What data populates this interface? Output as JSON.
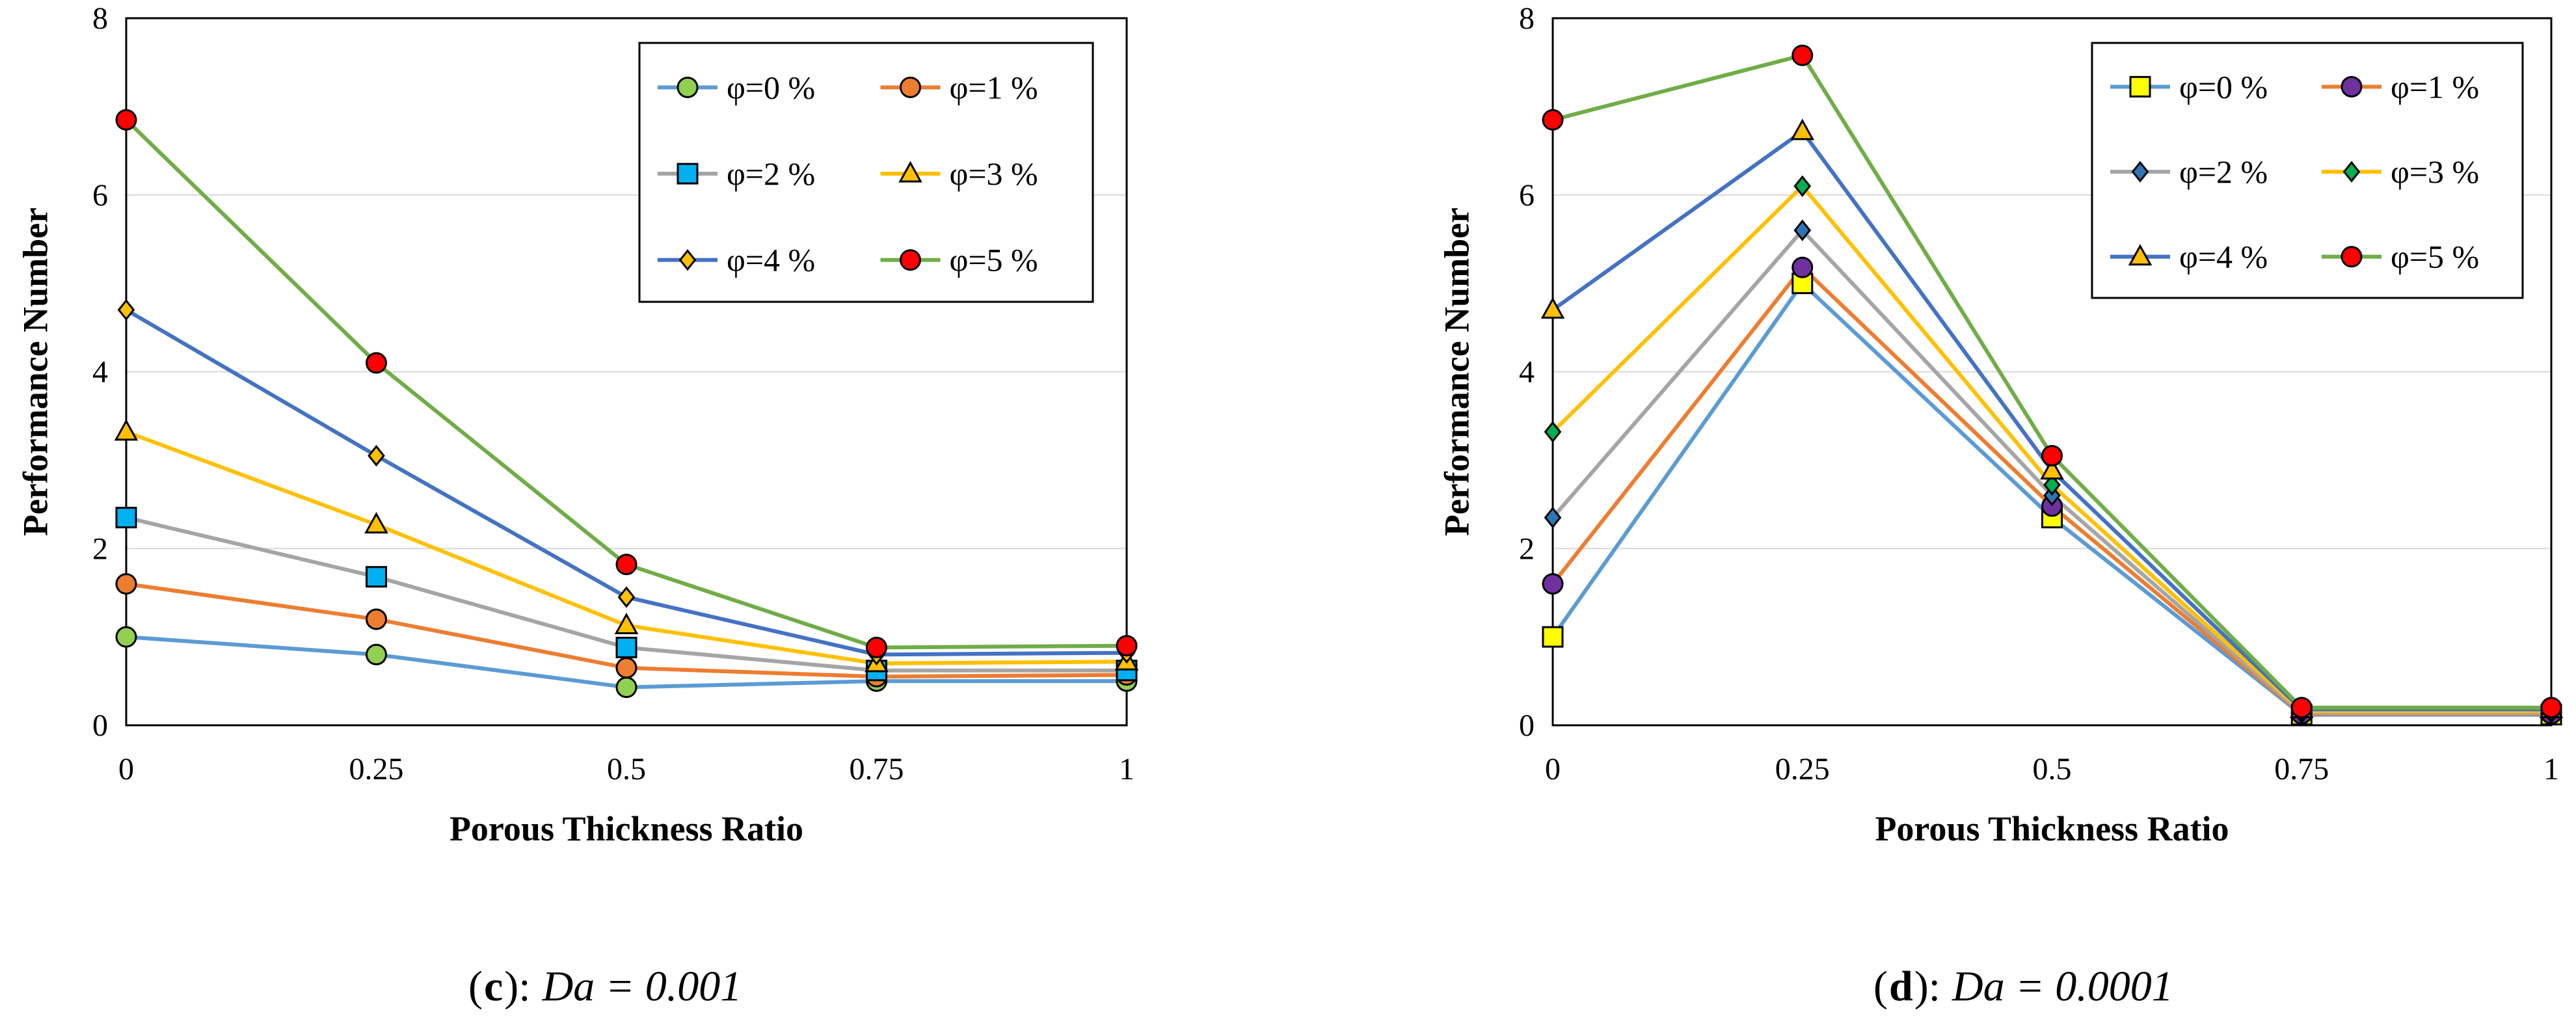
{
  "chart_data": [
    {
      "type": "line",
      "caption_label": "c",
      "caption_eq": "Da = 0.001",
      "xlabel": "Porous Thickness Ratio",
      "ylabel": "Performance Number",
      "x": [
        0,
        0.25,
        0.5,
        0.75,
        1
      ],
      "x_tick_labels": [
        "0",
        "0.25",
        "0.5",
        "0.75",
        "1"
      ],
      "ylim": [
        0,
        8
      ],
      "y_ticks": [
        0,
        2,
        4,
        6,
        8
      ],
      "legend_position": "top-right",
      "series": [
        {
          "name": "φ=0 %",
          "color": "#5b9bd5",
          "marker": "circle",
          "marker_fill": "#92d050",
          "values": [
            1.0,
            0.8,
            0.43,
            0.5,
            0.5
          ]
        },
        {
          "name": "φ=1 %",
          "color": "#ed7d31",
          "marker": "circle",
          "marker_fill": "#ed7d31",
          "values": [
            1.6,
            1.2,
            0.65,
            0.55,
            0.57
          ]
        },
        {
          "name": "φ=2 %",
          "color": "#a5a5a5",
          "marker": "square",
          "marker_fill": "#00b0f0",
          "values": [
            2.35,
            1.68,
            0.88,
            0.62,
            0.62
          ]
        },
        {
          "name": "φ=3 %",
          "color": "#ffc000",
          "marker": "triangle",
          "marker_fill": "#ffc000",
          "values": [
            3.32,
            2.27,
            1.13,
            0.7,
            0.72
          ]
        },
        {
          "name": "φ=4 %",
          "color": "#4472c4",
          "marker": "diamond",
          "marker_fill": "#ffc000",
          "values": [
            4.7,
            3.05,
            1.45,
            0.8,
            0.82
          ]
        },
        {
          "name": "φ=5 %",
          "color": "#70ad47",
          "marker": "circle",
          "marker_fill": "#ff0000",
          "values": [
            6.85,
            4.1,
            1.82,
            0.88,
            0.9
          ]
        }
      ]
    },
    {
      "type": "line",
      "caption_label": "d",
      "caption_eq": "Da = 0.0001",
      "xlabel": "Porous Thickness Ratio",
      "ylabel": "Performance Number",
      "x": [
        0,
        0.25,
        0.5,
        0.75,
        1
      ],
      "x_tick_labels": [
        "0",
        "0.25",
        "0.5",
        "0.75",
        "1"
      ],
      "ylim": [
        0,
        8
      ],
      "y_ticks": [
        0,
        2,
        4,
        6,
        8
      ],
      "legend_position": "top-right",
      "series": [
        {
          "name": "φ=0 %",
          "color": "#5b9bd5",
          "marker": "square",
          "marker_fill": "#ffff00",
          "values": [
            1.0,
            5.0,
            2.35,
            0.12,
            0.12
          ]
        },
        {
          "name": "φ=1 %",
          "color": "#ed7d31",
          "marker": "circle",
          "marker_fill": "#7030a0",
          "values": [
            1.6,
            5.18,
            2.48,
            0.13,
            0.13
          ]
        },
        {
          "name": "φ=2 %",
          "color": "#a5a5a5",
          "marker": "diamond",
          "marker_fill": "#2e75b6",
          "values": [
            2.35,
            5.6,
            2.6,
            0.14,
            0.14
          ]
        },
        {
          "name": "φ=3 %",
          "color": "#ffc000",
          "marker": "diamond",
          "marker_fill": "#00b050",
          "values": [
            3.32,
            6.1,
            2.72,
            0.16,
            0.16
          ]
        },
        {
          "name": "φ=4 %",
          "color": "#4472c4",
          "marker": "triangle",
          "marker_fill": "#ffc000",
          "values": [
            4.7,
            6.72,
            2.88,
            0.18,
            0.18
          ]
        },
        {
          "name": "φ=5 %",
          "color": "#70ad47",
          "marker": "circle",
          "marker_fill": "#ff0000",
          "values": [
            6.85,
            7.58,
            3.05,
            0.2,
            0.2
          ]
        }
      ]
    }
  ]
}
